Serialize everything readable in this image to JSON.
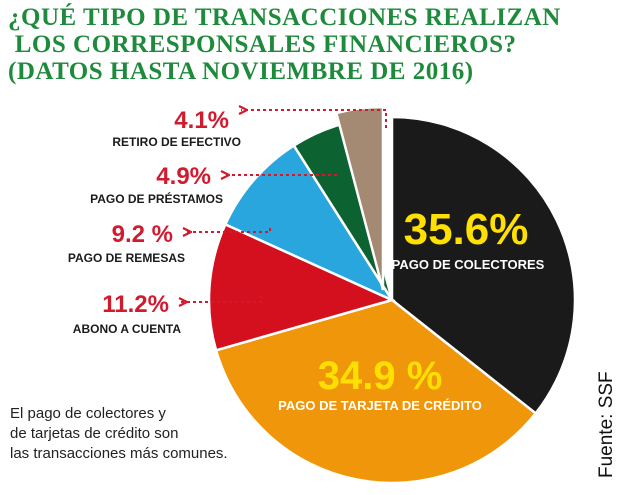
{
  "title_lines": [
    "¿QUÉ TIPO DE TRANSACCIONES REALIZAN",
    " LOS CORRESPONSALES FINANCIEROS?",
    "(DATOS HASTA NOVIEMBRE DE 2016)"
  ],
  "note_lines": [
    "El pago de colectores y",
    "de tarjetas de crédito son",
    "las transacciones más comunes."
  ],
  "source": "Fuente: SSF",
  "colors": {
    "title": "#1e8a3c",
    "label_value": "#d21a2e",
    "arrow": "#d21a2e"
  },
  "chart_data": {
    "type": "pie",
    "title": "¿QUÉ TIPO DE TRANSACCIONES REALIZAN LOS CORRESPONSALES FINANCIEROS? (DATOS HASTA NOVIEMBRE DE 2016)",
    "slices": [
      {
        "label": "PAGO DE COLECTORES",
        "value": 35.6,
        "value_label": "35.6%",
        "color": "#1a1a1a",
        "label_style": "inside"
      },
      {
        "label": "PAGO DE TARJETA DE CRÉDITO",
        "value": 34.9,
        "value_label": "34.9 %",
        "color": "#f0960a",
        "label_style": "inside"
      },
      {
        "label": "ABONO A CUENTA",
        "value": 11.2,
        "value_label": "11.2%",
        "color": "#d4101e",
        "label_style": "outside"
      },
      {
        "label": "PAGO DE REMESAS",
        "value": 9.2,
        "value_label": "9.2 %",
        "color": "#2aa6de",
        "label_style": "outside"
      },
      {
        "label": "PAGO DE PRÉSTAMOS",
        "value": 4.9,
        "value_label": "4.9%",
        "color": "#0c6230",
        "label_style": "outside"
      },
      {
        "label": "RETIRO DE EFECTIVO",
        "value": 4.1,
        "value_label": "4.1%",
        "color": "#a48a72",
        "label_style": "outside"
      }
    ]
  }
}
